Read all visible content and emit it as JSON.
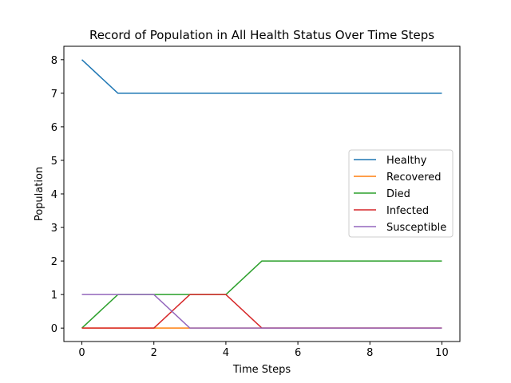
{
  "chart_data": {
    "type": "line",
    "title": "Record of Population in All Health Status Over Time Steps",
    "xlabel": "Time Steps",
    "ylabel": "Population",
    "xlim": [
      -0.5,
      10.5
    ],
    "ylim": [
      -0.4,
      8.4
    ],
    "xticks": [
      0,
      2,
      4,
      6,
      8,
      10
    ],
    "yticks": [
      0,
      1,
      2,
      3,
      4,
      5,
      6,
      7,
      8
    ],
    "grid": false,
    "legend_position": "center-right",
    "x": [
      0,
      1,
      2,
      3,
      4,
      5,
      6,
      7,
      8,
      9,
      10
    ],
    "series": [
      {
        "name": "Healthy",
        "color": "#1f77b4",
        "values": [
          8,
          7,
          7,
          7,
          7,
          7,
          7,
          7,
          7,
          7,
          7
        ]
      },
      {
        "name": "Recovered",
        "color": "#ff7f0e",
        "values": [
          0,
          0,
          0,
          0,
          0,
          0,
          0,
          0,
          0,
          0,
          0
        ]
      },
      {
        "name": "Died",
        "color": "#2ca02c",
        "values": [
          0,
          1,
          1,
          1,
          1,
          2,
          2,
          2,
          2,
          2,
          2
        ]
      },
      {
        "name": "Infected",
        "color": "#d62728",
        "values": [
          0,
          0,
          0,
          1,
          1,
          0,
          0,
          0,
          0,
          0,
          0
        ]
      },
      {
        "name": "Susceptible",
        "color": "#9467bd",
        "values": [
          1,
          1,
          1,
          0,
          0,
          0,
          0,
          0,
          0,
          0,
          0
        ]
      }
    ]
  }
}
